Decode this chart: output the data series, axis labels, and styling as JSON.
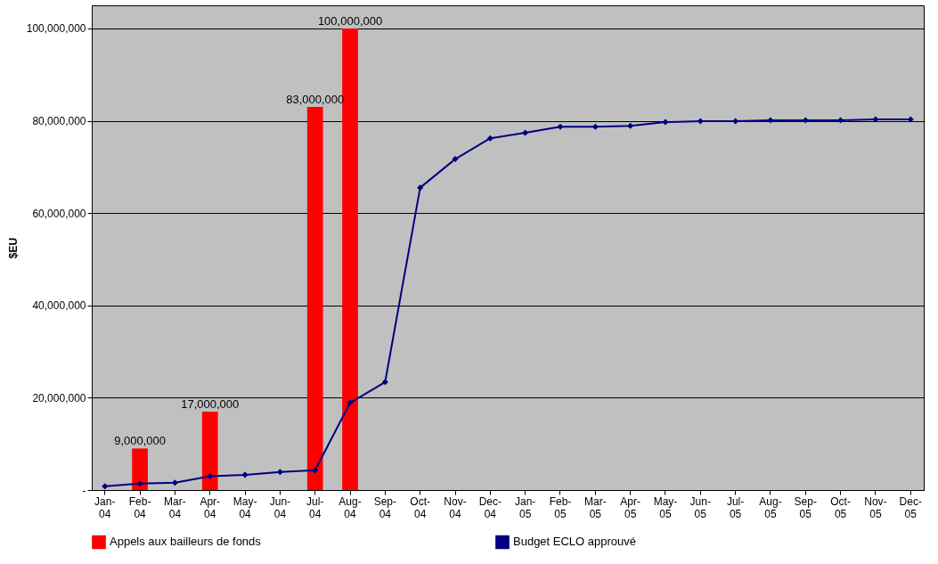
{
  "chart_data": {
    "type": "bar",
    "ylabel": "$EU",
    "categories": [
      "Jan-04",
      "Feb-04",
      "Mar-04",
      "Apr-04",
      "May-04",
      "Jun-04",
      "Jul-04",
      "Aug-04",
      "Sep-04",
      "Oct-04",
      "Nov-04",
      "Dec-04",
      "Jan-05",
      "Feb-05",
      "Mar-05",
      "Apr-05",
      "May-05",
      "Jun-05",
      "Jul-05",
      "Aug-05",
      "Sep-05",
      "Oct-05",
      "Nov-05",
      "Dec-05"
    ],
    "series": [
      {
        "name": "Appels aux bailleurs de fonds",
        "color": "#ff0000",
        "values": [
          null,
          9000000,
          null,
          17000000,
          null,
          null,
          83000000,
          100000000,
          null,
          null,
          null,
          null,
          null,
          null,
          null,
          null,
          null,
          null,
          null,
          null,
          null,
          null,
          null,
          null
        ]
      },
      {
        "name": "Budget ECLO approuvé",
        "type": "line",
        "color": "#000080",
        "marker": "diamond",
        "values": [
          800000,
          1400000,
          1600000,
          3000000,
          3300000,
          3900000,
          4300000,
          18900000,
          23400000,
          65500000,
          71700000,
          76200000,
          77400000,
          78700000,
          78700000,
          78900000,
          79700000,
          79900000,
          79900000,
          80100000,
          80100000,
          80100000,
          80300000,
          80300000
        ]
      }
    ],
    "ylim": [
      0,
      105000000
    ],
    "yticks": [
      {
        "value": 0,
        "label": "-"
      },
      {
        "value": 20000000,
        "label": "20,000,000"
      },
      {
        "value": 40000000,
        "label": "40,000,000"
      },
      {
        "value": 60000000,
        "label": "60,000,000"
      },
      {
        "value": 80000000,
        "label": "80,000,000"
      },
      {
        "value": 100000000,
        "label": "100,000,000"
      }
    ],
    "value_labels": [
      null,
      "9,000,000",
      null,
      "17,000,000",
      null,
      null,
      "83,000,000",
      "100,000,000",
      null,
      null,
      null,
      null,
      null,
      null,
      null,
      null,
      null,
      null,
      null,
      null,
      null,
      null,
      null,
      null
    ],
    "grid": "y",
    "legend": "bottom"
  }
}
